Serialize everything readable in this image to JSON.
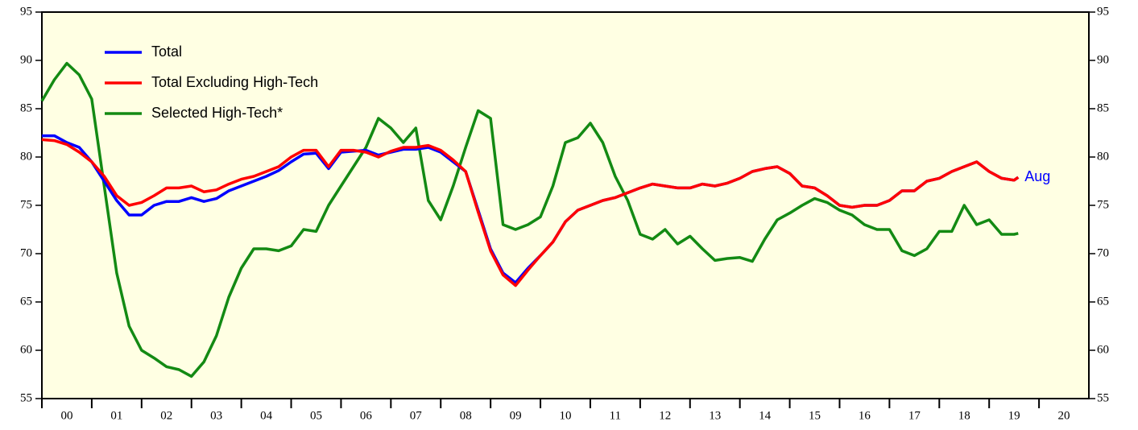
{
  "chart_data": {
    "type": "line",
    "x": [
      0,
      0.25,
      0.5,
      0.75,
      1,
      1.25,
      1.5,
      1.75,
      2,
      2.25,
      2.5,
      2.75,
      3,
      3.25,
      3.5,
      3.75,
      4,
      4.25,
      4.5,
      4.75,
      5,
      5.25,
      5.5,
      5.75,
      6,
      6.25,
      6.5,
      6.75,
      7,
      7.25,
      7.5,
      7.75,
      8,
      8.25,
      8.5,
      8.75,
      9,
      9.25,
      9.5,
      9.75,
      10,
      10.25,
      10.5,
      10.75,
      11,
      11.25,
      11.5,
      11.75,
      12,
      12.25,
      12.5,
      12.75,
      13,
      13.25,
      13.5,
      13.75,
      14,
      14.25,
      14.5,
      14.75,
      15,
      15.25,
      15.5,
      15.75,
      16,
      16.25,
      16.5,
      16.75,
      17,
      17.25,
      17.5,
      17.75,
      18,
      18.25,
      18.5,
      18.75,
      19,
      19.25,
      19.5,
      19.583
    ],
    "series": [
      {
        "name": "Total",
        "color": "#0000ff",
        "values": [
          82.2,
          82.2,
          81.5,
          81.0,
          79.5,
          77.5,
          75.5,
          74.0,
          74.0,
          75.0,
          75.4,
          75.4,
          75.8,
          75.4,
          75.7,
          76.5,
          77.0,
          77.5,
          78.0,
          78.6,
          79.5,
          80.3,
          80.4,
          78.8,
          80.5,
          80.6,
          80.7,
          80.2,
          80.5,
          80.8,
          80.8,
          81.0,
          80.5,
          79.5,
          78.5,
          74.5,
          70.5,
          68.0,
          67.0,
          68.5,
          69.8,
          71.2,
          73.3,
          74.5,
          75.0,
          75.5,
          75.8,
          76.3,
          76.8,
          77.2,
          77.0,
          76.8,
          76.8,
          77.2,
          77.0,
          77.3,
          77.8,
          78.5,
          78.8,
          79.0,
          78.3,
          77.0,
          76.8,
          76.0,
          75.0,
          74.8,
          75.0,
          75.0,
          75.5,
          76.5,
          76.5,
          77.5,
          77.8,
          78.5,
          79.0,
          79.5,
          78.5,
          77.8,
          77.6,
          77.9
        ]
      },
      {
        "name": "Total Excluding High-Tech",
        "color": "#ff0000",
        "values": [
          81.8,
          81.7,
          81.3,
          80.5,
          79.5,
          78.0,
          76.0,
          75.0,
          75.3,
          76.0,
          76.8,
          76.8,
          77.0,
          76.4,
          76.6,
          77.2,
          77.7,
          78.0,
          78.5,
          79.0,
          80.0,
          80.7,
          80.7,
          79.0,
          80.7,
          80.7,
          80.5,
          80.0,
          80.6,
          81.0,
          81.0,
          81.2,
          80.7,
          79.7,
          78.5,
          74.3,
          70.3,
          67.8,
          66.7,
          68.3,
          69.8,
          71.2,
          73.3,
          74.5,
          75.0,
          75.5,
          75.8,
          76.3,
          76.8,
          77.2,
          77.0,
          76.8,
          76.8,
          77.2,
          77.0,
          77.3,
          77.8,
          78.5,
          78.8,
          79.0,
          78.3,
          77.0,
          76.8,
          76.0,
          75.0,
          74.8,
          75.0,
          75.0,
          75.5,
          76.5,
          76.5,
          77.5,
          77.8,
          78.5,
          79.0,
          79.5,
          78.5,
          77.8,
          77.6,
          77.9
        ]
      },
      {
        "name": "Selected High-Tech*",
        "color": "#138a13",
        "values": [
          85.8,
          88.0,
          89.7,
          88.5,
          86.0,
          77.0,
          68.0,
          62.5,
          60.0,
          59.2,
          58.3,
          58.0,
          57.3,
          58.8,
          61.5,
          65.5,
          68.5,
          70.5,
          70.5,
          70.3,
          70.8,
          72.5,
          72.3,
          75.0,
          77.0,
          79.0,
          81.0,
          84.0,
          83.0,
          81.5,
          83.0,
          75.5,
          73.5,
          77.0,
          81.0,
          84.8,
          84.0,
          73.0,
          72.5,
          73.0,
          73.8,
          77.0,
          81.5,
          82.0,
          83.5,
          81.5,
          78.0,
          75.5,
          72.0,
          71.5,
          72.5,
          71.0,
          71.8,
          70.5,
          69.3,
          69.5,
          69.6,
          69.2,
          71.5,
          73.5,
          74.2,
          75.0,
          75.7,
          75.3,
          74.5,
          74.0,
          73.0,
          72.5,
          72.5,
          70.3,
          69.8,
          70.5,
          72.3,
          72.3,
          75.0,
          73.0,
          73.5,
          72.0,
          72.0,
          72.1
        ]
      }
    ],
    "annotation": "Aug",
    "xlim": [
      0,
      21
    ],
    "xticks": [
      {
        "value": 0,
        "label": "00"
      },
      {
        "value": 1,
        "label": "01"
      },
      {
        "value": 2,
        "label": "02"
      },
      {
        "value": 3,
        "label": "03"
      },
      {
        "value": 4,
        "label": "04"
      },
      {
        "value": 5,
        "label": "05"
      },
      {
        "value": 6,
        "label": "06"
      },
      {
        "value": 7,
        "label": "07"
      },
      {
        "value": 8,
        "label": "08"
      },
      {
        "value": 9,
        "label": "09"
      },
      {
        "value": 10,
        "label": "10"
      },
      {
        "value": 11,
        "label": "11"
      },
      {
        "value": 12,
        "label": "12"
      },
      {
        "value": 13,
        "label": "13"
      },
      {
        "value": 14,
        "label": "14"
      },
      {
        "value": 15,
        "label": "15"
      },
      {
        "value": 16,
        "label": "16"
      },
      {
        "value": 17,
        "label": "17"
      },
      {
        "value": 18,
        "label": "18"
      },
      {
        "value": 19,
        "label": "19"
      },
      {
        "value": 20,
        "label": "20"
      }
    ],
    "ylim": [
      55,
      95
    ],
    "yticks": [
      55,
      60,
      65,
      70,
      75,
      80,
      85,
      90,
      95
    ],
    "y2lim": [
      55,
      95
    ],
    "y2ticks": [
      55,
      60,
      65,
      70,
      75,
      80,
      85,
      90,
      95
    ],
    "background": "#ffffe3",
    "legend": "upper-left"
  }
}
